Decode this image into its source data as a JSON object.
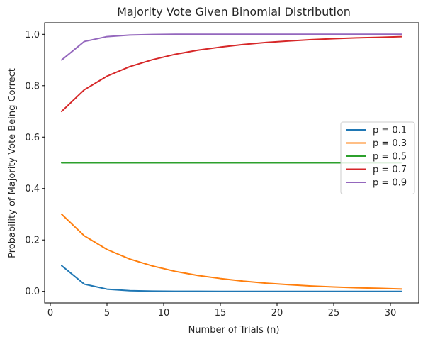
{
  "chart_data": {
    "type": "line",
    "title": "Majority Vote Given Binomial Distribution",
    "xlabel": "Number of Trials (n)",
    "ylabel": "Probability of Majority Vote Being Correct",
    "xlim": [
      -0.5,
      32.5
    ],
    "ylim": [
      -0.045,
      1.045
    ],
    "xticks": [
      0,
      5,
      10,
      15,
      20,
      25,
      30
    ],
    "xtick_labels": [
      "0",
      "5",
      "10",
      "15",
      "20",
      "25",
      "30"
    ],
    "yticks": [
      0.0,
      0.2,
      0.4,
      0.6,
      0.8,
      1.0
    ],
    "ytick_labels": [
      "0.0",
      "0.2",
      "0.4",
      "0.6",
      "0.8",
      "1.0"
    ],
    "grid": false,
    "legend_position": "center-right",
    "x": [
      1,
      3,
      5,
      7,
      9,
      11,
      13,
      15,
      17,
      19,
      21,
      23,
      25,
      27,
      29,
      31
    ],
    "series": [
      {
        "name": "p = 0.1",
        "color": "#1f77b4",
        "values": [
          0.1,
          0.028,
          0.0086,
          0.0027,
          0.0009,
          0.0003,
          0.0001,
          0.0,
          0.0,
          0.0,
          0.0,
          0.0,
          0.0,
          0.0,
          0.0,
          0.0
        ]
      },
      {
        "name": "p = 0.3",
        "color": "#ff7f0e",
        "values": [
          0.3,
          0.216,
          0.163,
          0.126,
          0.099,
          0.078,
          0.062,
          0.05,
          0.04,
          0.032,
          0.026,
          0.021,
          0.017,
          0.014,
          0.012,
          0.009
        ]
      },
      {
        "name": "p = 0.5",
        "color": "#2ca02c",
        "values": [
          0.5,
          0.5,
          0.5,
          0.5,
          0.5,
          0.5,
          0.5,
          0.5,
          0.5,
          0.5,
          0.5,
          0.5,
          0.5,
          0.5,
          0.5,
          0.5
        ]
      },
      {
        "name": "p = 0.7",
        "color": "#d62728",
        "values": [
          0.7,
          0.784,
          0.837,
          0.874,
          0.901,
          0.922,
          0.938,
          0.95,
          0.96,
          0.968,
          0.974,
          0.979,
          0.983,
          0.986,
          0.988,
          0.991
        ]
      },
      {
        "name": "p = 0.9",
        "color": "#9467bd",
        "values": [
          0.9,
          0.972,
          0.991,
          0.997,
          0.999,
          1.0,
          1.0,
          1.0,
          1.0,
          1.0,
          1.0,
          1.0,
          1.0,
          1.0,
          1.0,
          1.0
        ]
      }
    ]
  }
}
